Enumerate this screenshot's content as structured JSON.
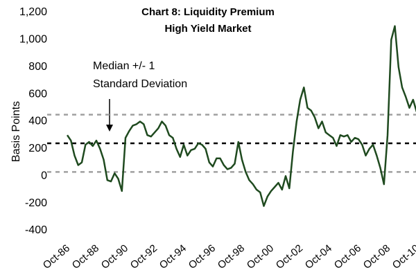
{
  "chart_data": {
    "type": "line",
    "title": "Chart 8: Liquidity Premium",
    "subtitle": "High Yield Market",
    "y_label": "Basis Points",
    "annotation": [
      "Median +/- 1",
      "Standard Deviation"
    ],
    "x": [
      "1986-10",
      "1987-01",
      "1987-04",
      "1987-07",
      "1987-10",
      "1988-01",
      "1988-04",
      "1988-07",
      "1988-10",
      "1989-01",
      "1989-04",
      "1989-07",
      "1989-10",
      "1990-01",
      "1990-04",
      "1990-07",
      "1990-10",
      "1991-01",
      "1991-04",
      "1991-07",
      "1991-10",
      "1992-01",
      "1992-04",
      "1992-07",
      "1992-10",
      "1993-01",
      "1993-04",
      "1993-07",
      "1993-10",
      "1994-01",
      "1994-04",
      "1994-07",
      "1994-10",
      "1995-01",
      "1995-04",
      "1995-07",
      "1995-10",
      "1996-01",
      "1996-04",
      "1996-07",
      "1996-10",
      "1997-01",
      "1997-04",
      "1997-07",
      "1997-10",
      "1998-01",
      "1998-04",
      "1998-07",
      "1998-10",
      "1999-01",
      "1999-04",
      "1999-07",
      "1999-10",
      "2000-01",
      "2000-04",
      "2000-07",
      "2000-10",
      "2001-01",
      "2001-04",
      "2001-07",
      "2001-10",
      "2002-01",
      "2002-04",
      "2002-07",
      "2002-10",
      "2003-01",
      "2003-04",
      "2003-07",
      "2003-10",
      "2004-01",
      "2004-04",
      "2004-07",
      "2004-10",
      "2005-01",
      "2005-04",
      "2005-07",
      "2005-10",
      "2006-01",
      "2006-04",
      "2006-07",
      "2006-10",
      "2007-01",
      "2007-04",
      "2007-07",
      "2007-10",
      "2008-01",
      "2008-04",
      "2008-07",
      "2008-10",
      "2009-01",
      "2009-04",
      "2009-07",
      "2009-10",
      "2010-01",
      "2010-04",
      "2010-07",
      "2010-10"
    ],
    "series": [
      {
        "color": "#1f4a1f",
        "values": [
          300,
          260,
          150,
          80,
          100,
          230,
          250,
          220,
          260,
          200,
          120,
          -30,
          -40,
          20,
          -20,
          -110,
          280,
          330,
          370,
          380,
          400,
          380,
          300,
          290,
          320,
          350,
          400,
          370,
          300,
          280,
          200,
          140,
          230,
          150,
          190,
          200,
          240,
          230,
          200,
          100,
          70,
          130,
          130,
          80,
          50,
          60,
          90,
          250,
          120,
          30,
          -30,
          -60,
          -100,
          -120,
          -220,
          -150,
          -110,
          -80,
          -50,
          -100,
          0,
          -90,
          180,
          400,
          560,
          650,
          500,
          480,
          430,
          350,
          400,
          320,
          300,
          280,
          220,
          300,
          290,
          300,
          250,
          280,
          270,
          230,
          150,
          200,
          230,
          150,
          60,
          -60,
          300,
          1000,
          1100,
          800,
          650,
          580,
          500,
          560,
          470
        ]
      }
    ],
    "reference_lines": [
      {
        "value": 450,
        "color": "#a0a0a0"
      },
      {
        "value": 240,
        "color": "#000000"
      },
      {
        "value": 30,
        "color": "#a0a0a0"
      }
    ],
    "ylim": [
      -400,
      1200
    ],
    "yticks": [
      -400,
      -200,
      0,
      200,
      400,
      600,
      800,
      {
        "value": 1000,
        "label": "1,000"
      },
      {
        "value": 1200,
        "label": "1,200"
      }
    ],
    "xticks": [
      {
        "value": "1986-10",
        "label": "Oct-86"
      },
      {
        "value": "1988-10",
        "label": "Oct-88"
      },
      {
        "value": "1990-10",
        "label": "Oct-90"
      },
      {
        "value": "1992-10",
        "label": "Oct-92"
      },
      {
        "value": "1994-10",
        "label": "Oct-94"
      },
      {
        "value": "1996-10",
        "label": "Oct-96"
      },
      {
        "value": "1998-10",
        "label": "Oct-98"
      },
      {
        "value": "2000-10",
        "label": "Oct-00"
      },
      {
        "value": "2002-10",
        "label": "Oct-02"
      },
      {
        "value": "2004-10",
        "label": "Oct-04"
      },
      {
        "value": "2006-10",
        "label": "Oct-06"
      },
      {
        "value": "2008-10",
        "label": "Oct-08"
      },
      {
        "value": "2010-10",
        "label": "Oct-10"
      }
    ]
  }
}
